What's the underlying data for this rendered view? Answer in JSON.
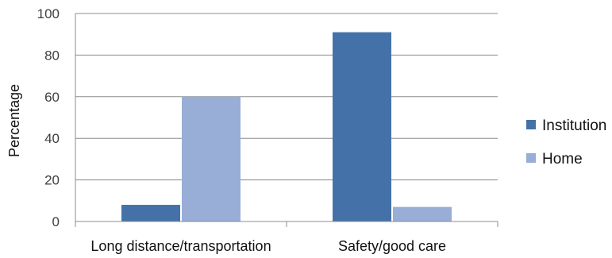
{
  "chart_data": {
    "type": "bar",
    "title": "",
    "xlabel": "",
    "ylabel": "Percentage",
    "ylim": [
      0,
      100
    ],
    "yticks": [
      0,
      20,
      40,
      60,
      80,
      100
    ],
    "grid": true,
    "legend_position": "right",
    "categories": [
      "Long distance/transportation",
      "Safety/good care"
    ],
    "series": [
      {
        "name": "Institution",
        "color": "#4472a8",
        "values": [
          8,
          91
        ]
      },
      {
        "name": "Home",
        "color": "#98aed6",
        "values": [
          60,
          7
        ]
      }
    ]
  }
}
